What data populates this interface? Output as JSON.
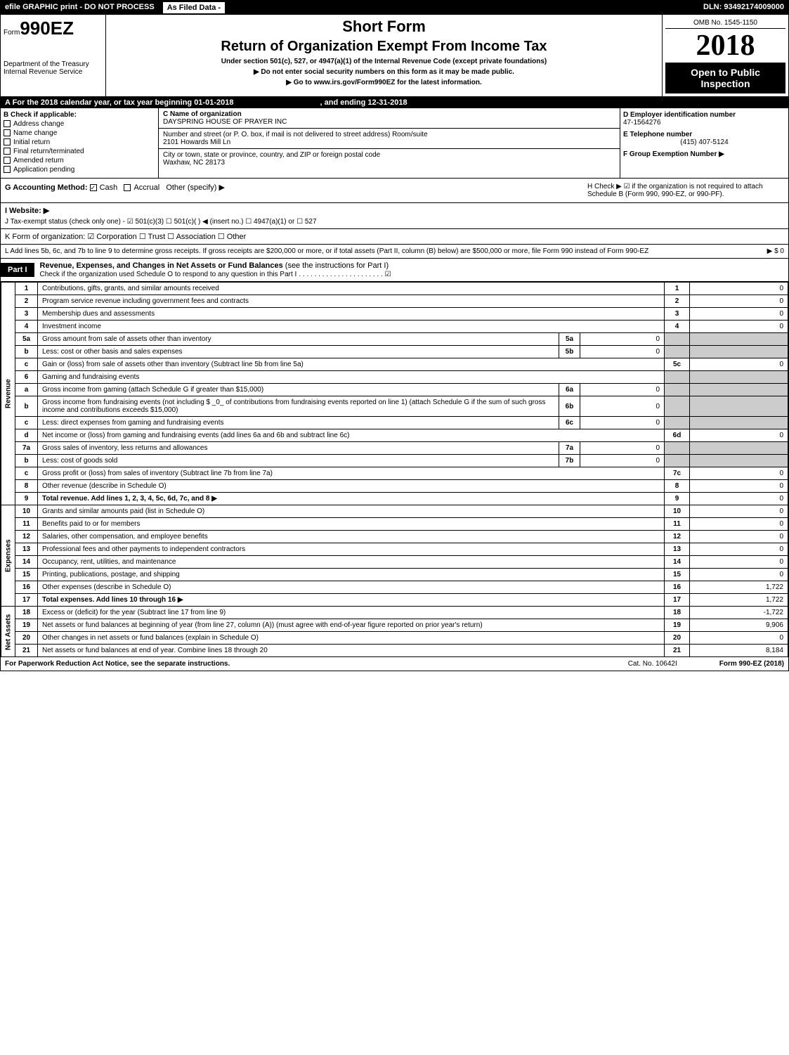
{
  "topbar": {
    "left": "efile GRAPHIC print - DO NOT PROCESS",
    "filed": "As Filed Data -",
    "dln": "DLN: 93492174009000"
  },
  "header": {
    "form_prefix": "Form",
    "form_number": "990EZ",
    "dept": "Department of the Treasury",
    "irs": "Internal Revenue Service",
    "short_form": "Short Form",
    "title": "Return of Organization Exempt From Income Tax",
    "subtitle": "Under section 501(c), 527, or 4947(a)(1) of the Internal Revenue Code (except private foundations)",
    "note1": "▶ Do not enter social security numbers on this form as it may be made public.",
    "note2": "▶ Go to www.irs.gov/Form990EZ for the latest information.",
    "omb": "OMB No. 1545-1150",
    "year": "2018",
    "open": "Open to Public Inspection"
  },
  "row_a": {
    "label": "A  For the 2018 calendar year, or tax year beginning 01-01-2018",
    "ending_label": ", and ending 12-31-2018"
  },
  "section_b": {
    "label": "B  Check if applicable:",
    "items": [
      "Address change",
      "Name change",
      "Initial return",
      "Final return/terminated",
      "Amended return",
      "Application pending"
    ]
  },
  "section_c": {
    "name_label": "C Name of organization",
    "name": "DAYSPRING HOUSE OF PRAYER INC",
    "street_label": "Number and street (or P. O. box, if mail is not delivered to street address)  Room/suite",
    "street": "2101 Howards Mill Ln",
    "city_label": "City or town, state or province, country, and ZIP or foreign postal code",
    "city": "Waxhaw, NC  28173"
  },
  "section_d": {
    "ein_label": "D Employer identification number",
    "ein": "47-1564276",
    "phone_label": "E Telephone number",
    "phone": "(415) 407-5124",
    "group_label": "F Group Exemption Number  ▶"
  },
  "section_g": {
    "label": "G Accounting Method:",
    "cash": "Cash",
    "accrual": "Accrual",
    "other": "Other (specify) ▶",
    "h_label": "H  Check ▶ ☑ if the organization is not required to attach Schedule B (Form 990, 990-EZ, or 990-PF)."
  },
  "section_i": {
    "label": "I Website: ▶",
    "j_label": "J Tax-exempt status (check only one) - ☑ 501(c)(3)  ☐ 501(c)(  ) ◀ (insert no.) ☐ 4947(a)(1) or ☐ 527"
  },
  "section_k": {
    "label": "K Form of organization:  ☑ Corporation  ☐ Trust  ☐ Association  ☐ Other"
  },
  "section_l": {
    "text": "L Add lines 5b, 6c, and 7b to line 9 to determine gross receipts. If gross receipts are $200,000 or more, or if total assets (Part II, column (B) below) are $500,000 or more, file Form 990 instead of Form 990-EZ",
    "amount": "▶ $ 0"
  },
  "part1": {
    "tag": "Part I",
    "title": "Revenue, Expenses, and Changes in Net Assets or Fund Balances",
    "sub": "(see the instructions for Part I)",
    "check_line": "Check if the organization used Schedule O to respond to any question in this Part I"
  },
  "sections": {
    "revenue": "Revenue",
    "expenses": "Expenses",
    "netassets": "Net Assets"
  },
  "lines": [
    {
      "n": "1",
      "desc": "Contributions, gifts, grants, and similar amounts received",
      "box": "1",
      "val": "0"
    },
    {
      "n": "2",
      "desc": "Program service revenue including government fees and contracts",
      "box": "2",
      "val": "0"
    },
    {
      "n": "3",
      "desc": "Membership dues and assessments",
      "box": "3",
      "val": "0"
    },
    {
      "n": "4",
      "desc": "Investment income",
      "box": "4",
      "val": "0"
    },
    {
      "n": "5a",
      "desc": "Gross amount from sale of assets other than inventory",
      "sub": "5a",
      "subval": "0"
    },
    {
      "n": "b",
      "desc": "Less: cost or other basis and sales expenses",
      "sub": "5b",
      "subval": "0"
    },
    {
      "n": "c",
      "desc": "Gain or (loss) from sale of assets other than inventory (Subtract line 5b from line 5a)",
      "box": "5c",
      "val": "0"
    },
    {
      "n": "6",
      "desc": "Gaming and fundraising events"
    },
    {
      "n": "a",
      "desc": "Gross income from gaming (attach Schedule G if greater than $15,000)",
      "sub": "6a",
      "subval": "0"
    },
    {
      "n": "b",
      "desc": "Gross income from fundraising events (not including $ _0_ of contributions from fundraising events reported on line 1) (attach Schedule G if the sum of such gross income and contributions exceeds $15,000)",
      "sub": "6b",
      "subval": "0"
    },
    {
      "n": "c",
      "desc": "Less: direct expenses from gaming and fundraising events",
      "sub": "6c",
      "subval": "0"
    },
    {
      "n": "d",
      "desc": "Net income or (loss) from gaming and fundraising events (add lines 6a and 6b and subtract line 6c)",
      "box": "6d",
      "val": "0"
    },
    {
      "n": "7a",
      "desc": "Gross sales of inventory, less returns and allowances",
      "sub": "7a",
      "subval": "0"
    },
    {
      "n": "b",
      "desc": "Less: cost of goods sold",
      "sub": "7b",
      "subval": "0"
    },
    {
      "n": "c",
      "desc": "Gross profit or (loss) from sales of inventory (Subtract line 7b from line 7a)",
      "box": "7c",
      "val": "0"
    },
    {
      "n": "8",
      "desc": "Other revenue (describe in Schedule O)",
      "box": "8",
      "val": "0"
    },
    {
      "n": "9",
      "desc": "Total revenue. Add lines 1, 2, 3, 4, 5c, 6d, 7c, and 8",
      "box": "9",
      "val": "0",
      "bold": true,
      "arrow": true
    },
    {
      "n": "10",
      "desc": "Grants and similar amounts paid (list in Schedule O)",
      "box": "10",
      "val": "0"
    },
    {
      "n": "11",
      "desc": "Benefits paid to or for members",
      "box": "11",
      "val": "0"
    },
    {
      "n": "12",
      "desc": "Salaries, other compensation, and employee benefits",
      "box": "12",
      "val": "0"
    },
    {
      "n": "13",
      "desc": "Professional fees and other payments to independent contractors",
      "box": "13",
      "val": "0"
    },
    {
      "n": "14",
      "desc": "Occupancy, rent, utilities, and maintenance",
      "box": "14",
      "val": "0"
    },
    {
      "n": "15",
      "desc": "Printing, publications, postage, and shipping",
      "box": "15",
      "val": "0"
    },
    {
      "n": "16",
      "desc": "Other expenses (describe in Schedule O)",
      "box": "16",
      "val": "1,722"
    },
    {
      "n": "17",
      "desc": "Total expenses. Add lines 10 through 16",
      "box": "17",
      "val": "1,722",
      "bold": true,
      "arrow": true
    },
    {
      "n": "18",
      "desc": "Excess or (deficit) for the year (Subtract line 17 from line 9)",
      "box": "18",
      "val": "-1,722"
    },
    {
      "n": "19",
      "desc": "Net assets or fund balances at beginning of year (from line 27, column (A)) (must agree with end-of-year figure reported on prior year's return)",
      "box": "19",
      "val": "9,906"
    },
    {
      "n": "20",
      "desc": "Other changes in net assets or fund balances (explain in Schedule O)",
      "box": "20",
      "val": "0"
    },
    {
      "n": "21",
      "desc": "Net assets or fund balances at end of year. Combine lines 18 through 20",
      "box": "21",
      "val": "8,184"
    }
  ],
  "footer": {
    "left": "For Paperwork Reduction Act Notice, see the separate instructions.",
    "mid": "Cat. No. 10642I",
    "right": "Form 990-EZ (2018)"
  }
}
